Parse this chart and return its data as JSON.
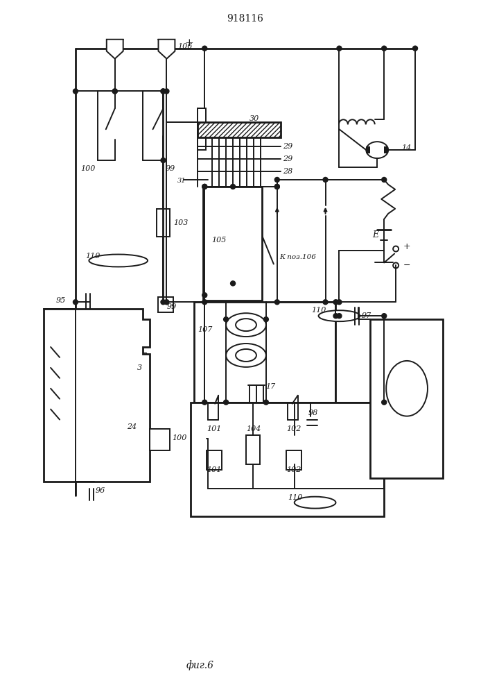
{
  "title": "918116",
  "caption": "фиг.6",
  "lc": "#1a1a1a"
}
